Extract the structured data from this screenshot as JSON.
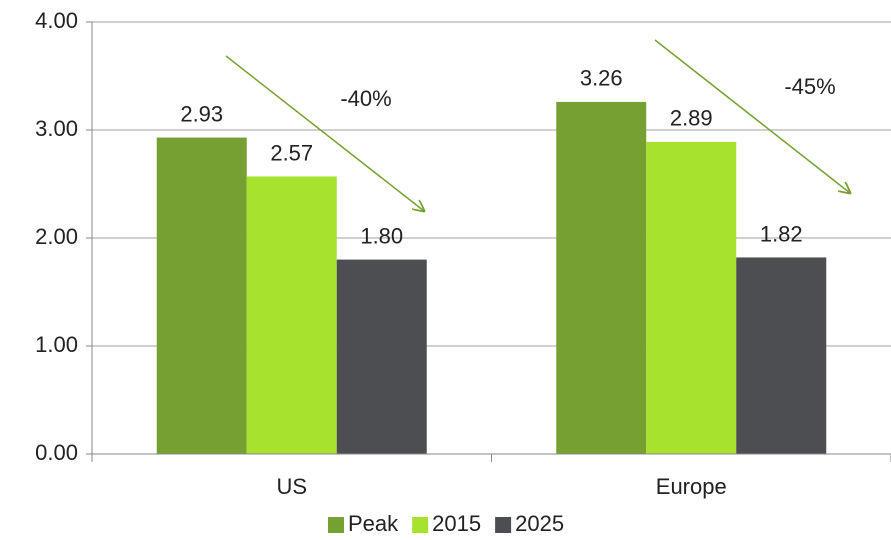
{
  "chart_data": {
    "type": "bar",
    "categories": [
      "US",
      "Europe"
    ],
    "series": [
      {
        "name": "Peak",
        "color": "#77a033",
        "values": [
          2.93,
          3.26
        ],
        "value_labels": [
          "2.93",
          "3.26"
        ]
      },
      {
        "name": "2015",
        "color": "#a6e22e",
        "values": [
          2.57,
          2.89
        ],
        "value_labels": [
          "2.57",
          "2.89"
        ]
      },
      {
        "name": "2025",
        "color": "#4d4e52",
        "values": [
          1.8,
          1.82
        ],
        "value_labels": [
          "1.80",
          "1.82"
        ]
      }
    ],
    "ylim": [
      0,
      4
    ],
    "yticks": [
      {
        "value": 0,
        "label": "0.00"
      },
      {
        "value": 1,
        "label": "1.00"
      },
      {
        "value": 2,
        "label": "2.00"
      },
      {
        "value": 3,
        "label": "3.00"
      },
      {
        "value": 4,
        "label": "4.00"
      }
    ],
    "grid": true,
    "legend": "bottom",
    "annotations": [
      "-40%",
      "-45%"
    ]
  }
}
